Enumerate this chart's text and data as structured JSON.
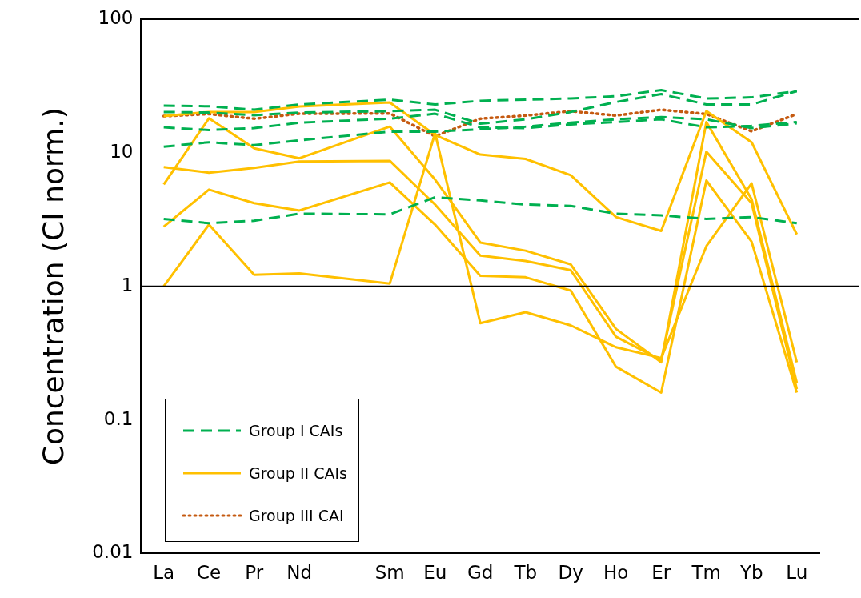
{
  "chart_data": {
    "type": "line",
    "ylabel": "Concentration (CI norm.)",
    "categories": [
      "La",
      "Ce",
      "Pr",
      "Nd",
      null,
      "Sm",
      "Eu",
      "Gd",
      "Tb",
      "Dy",
      "Ho",
      "Er",
      "Tm",
      "Yb",
      "Lu"
    ],
    "log": "y",
    "ylim": [
      0.01,
      100
    ],
    "yticks": [
      0.01,
      0.1,
      1,
      10,
      100
    ],
    "grid": false,
    "legend": "bottom left",
    "marker": "none",
    "ref_lines": [
      {
        "axis": "y",
        "value": 1
      }
    ],
    "series": [
      {
        "name": "Group I CAIs",
        "color": "#00b050",
        "line_style": "dashed",
        "values": [
          22.5,
          22.3,
          21,
          23,
          null,
          25,
          23,
          24.5,
          25,
          25.5,
          26.5,
          29.5,
          25.5,
          26,
          29
        ]
      },
      {
        "color": "#00b050",
        "line_style": "dashed",
        "values": [
          20.2,
          20,
          19.1,
          20,
          null,
          20.5,
          21,
          16.5,
          17.8,
          20.2,
          24,
          27.5,
          23,
          23,
          29
        ]
      },
      {
        "color": "#00b050",
        "line_style": "dashed",
        "values": [
          15.5,
          14.8,
          15.3,
          16.8,
          null,
          18,
          19.6,
          15.5,
          15.3,
          16.3,
          17,
          17.8,
          15.5,
          15.9,
          17
        ]
      },
      {
        "color": "#00b050",
        "line_style": "dashed",
        "values": [
          11.1,
          12,
          11.4,
          12.4,
          null,
          14.4,
          14.4,
          15,
          15.7,
          16.8,
          17.8,
          18.5,
          17.8,
          15.3,
          16.6
        ]
      },
      {
        "color": "#00b050",
        "line_style": "dashed",
        "values": [
          3.2,
          2.97,
          3.1,
          3.5,
          null,
          3.46,
          4.65,
          4.4,
          4.1,
          4,
          3.5,
          3.4,
          3.2,
          3.3,
          2.97
        ]
      },
      {
        "name": "Group II CAIs",
        "color": "#ffc000",
        "line_style": "solid",
        "values": [
          18.8,
          20.2,
          20.2,
          22.2,
          null,
          23.8,
          13.6,
          9.7,
          9,
          6.8,
          3.3,
          2.6,
          20.5,
          12,
          2.45
        ]
      },
      {
        "color": "#ffc000",
        "line_style": "solid",
        "values": [
          5.8,
          18.1,
          10.8,
          9.1,
          null,
          15.7,
          6.3,
          2.13,
          1.85,
          1.46,
          0.48,
          0.27,
          17,
          4.5,
          0.19
        ]
      },
      {
        "color": "#ffc000",
        "line_style": "solid",
        "values": [
          7.8,
          7.1,
          7.7,
          8.6,
          null,
          8.7,
          4.1,
          1.7,
          1.55,
          1.32,
          0.42,
          0.28,
          10.2,
          4.2,
          0.17
        ]
      },
      {
        "color": "#ffc000",
        "line_style": "solid",
        "values": [
          2.8,
          5.3,
          4.2,
          3.7,
          null,
          6,
          2.9,
          1.2,
          1.17,
          0.93,
          0.25,
          0.16,
          6.2,
          2.16,
          0.16
        ]
      },
      {
        "color": "#ffc000",
        "line_style": "solid",
        "values": [
          1,
          2.9,
          1.22,
          1.25,
          null,
          1.05,
          14,
          0.53,
          0.64,
          0.51,
          0.35,
          0.29,
          2,
          5.9,
          0.27
        ]
      },
      {
        "name": "Group III CAI",
        "color": "#c55a11",
        "line_style": "dotted",
        "values": [
          18.8,
          19.5,
          18,
          19.6,
          null,
          19.7,
          13.3,
          18,
          19,
          20.5,
          19,
          21,
          19.5,
          14.5,
          19.5
        ]
      }
    ]
  }
}
